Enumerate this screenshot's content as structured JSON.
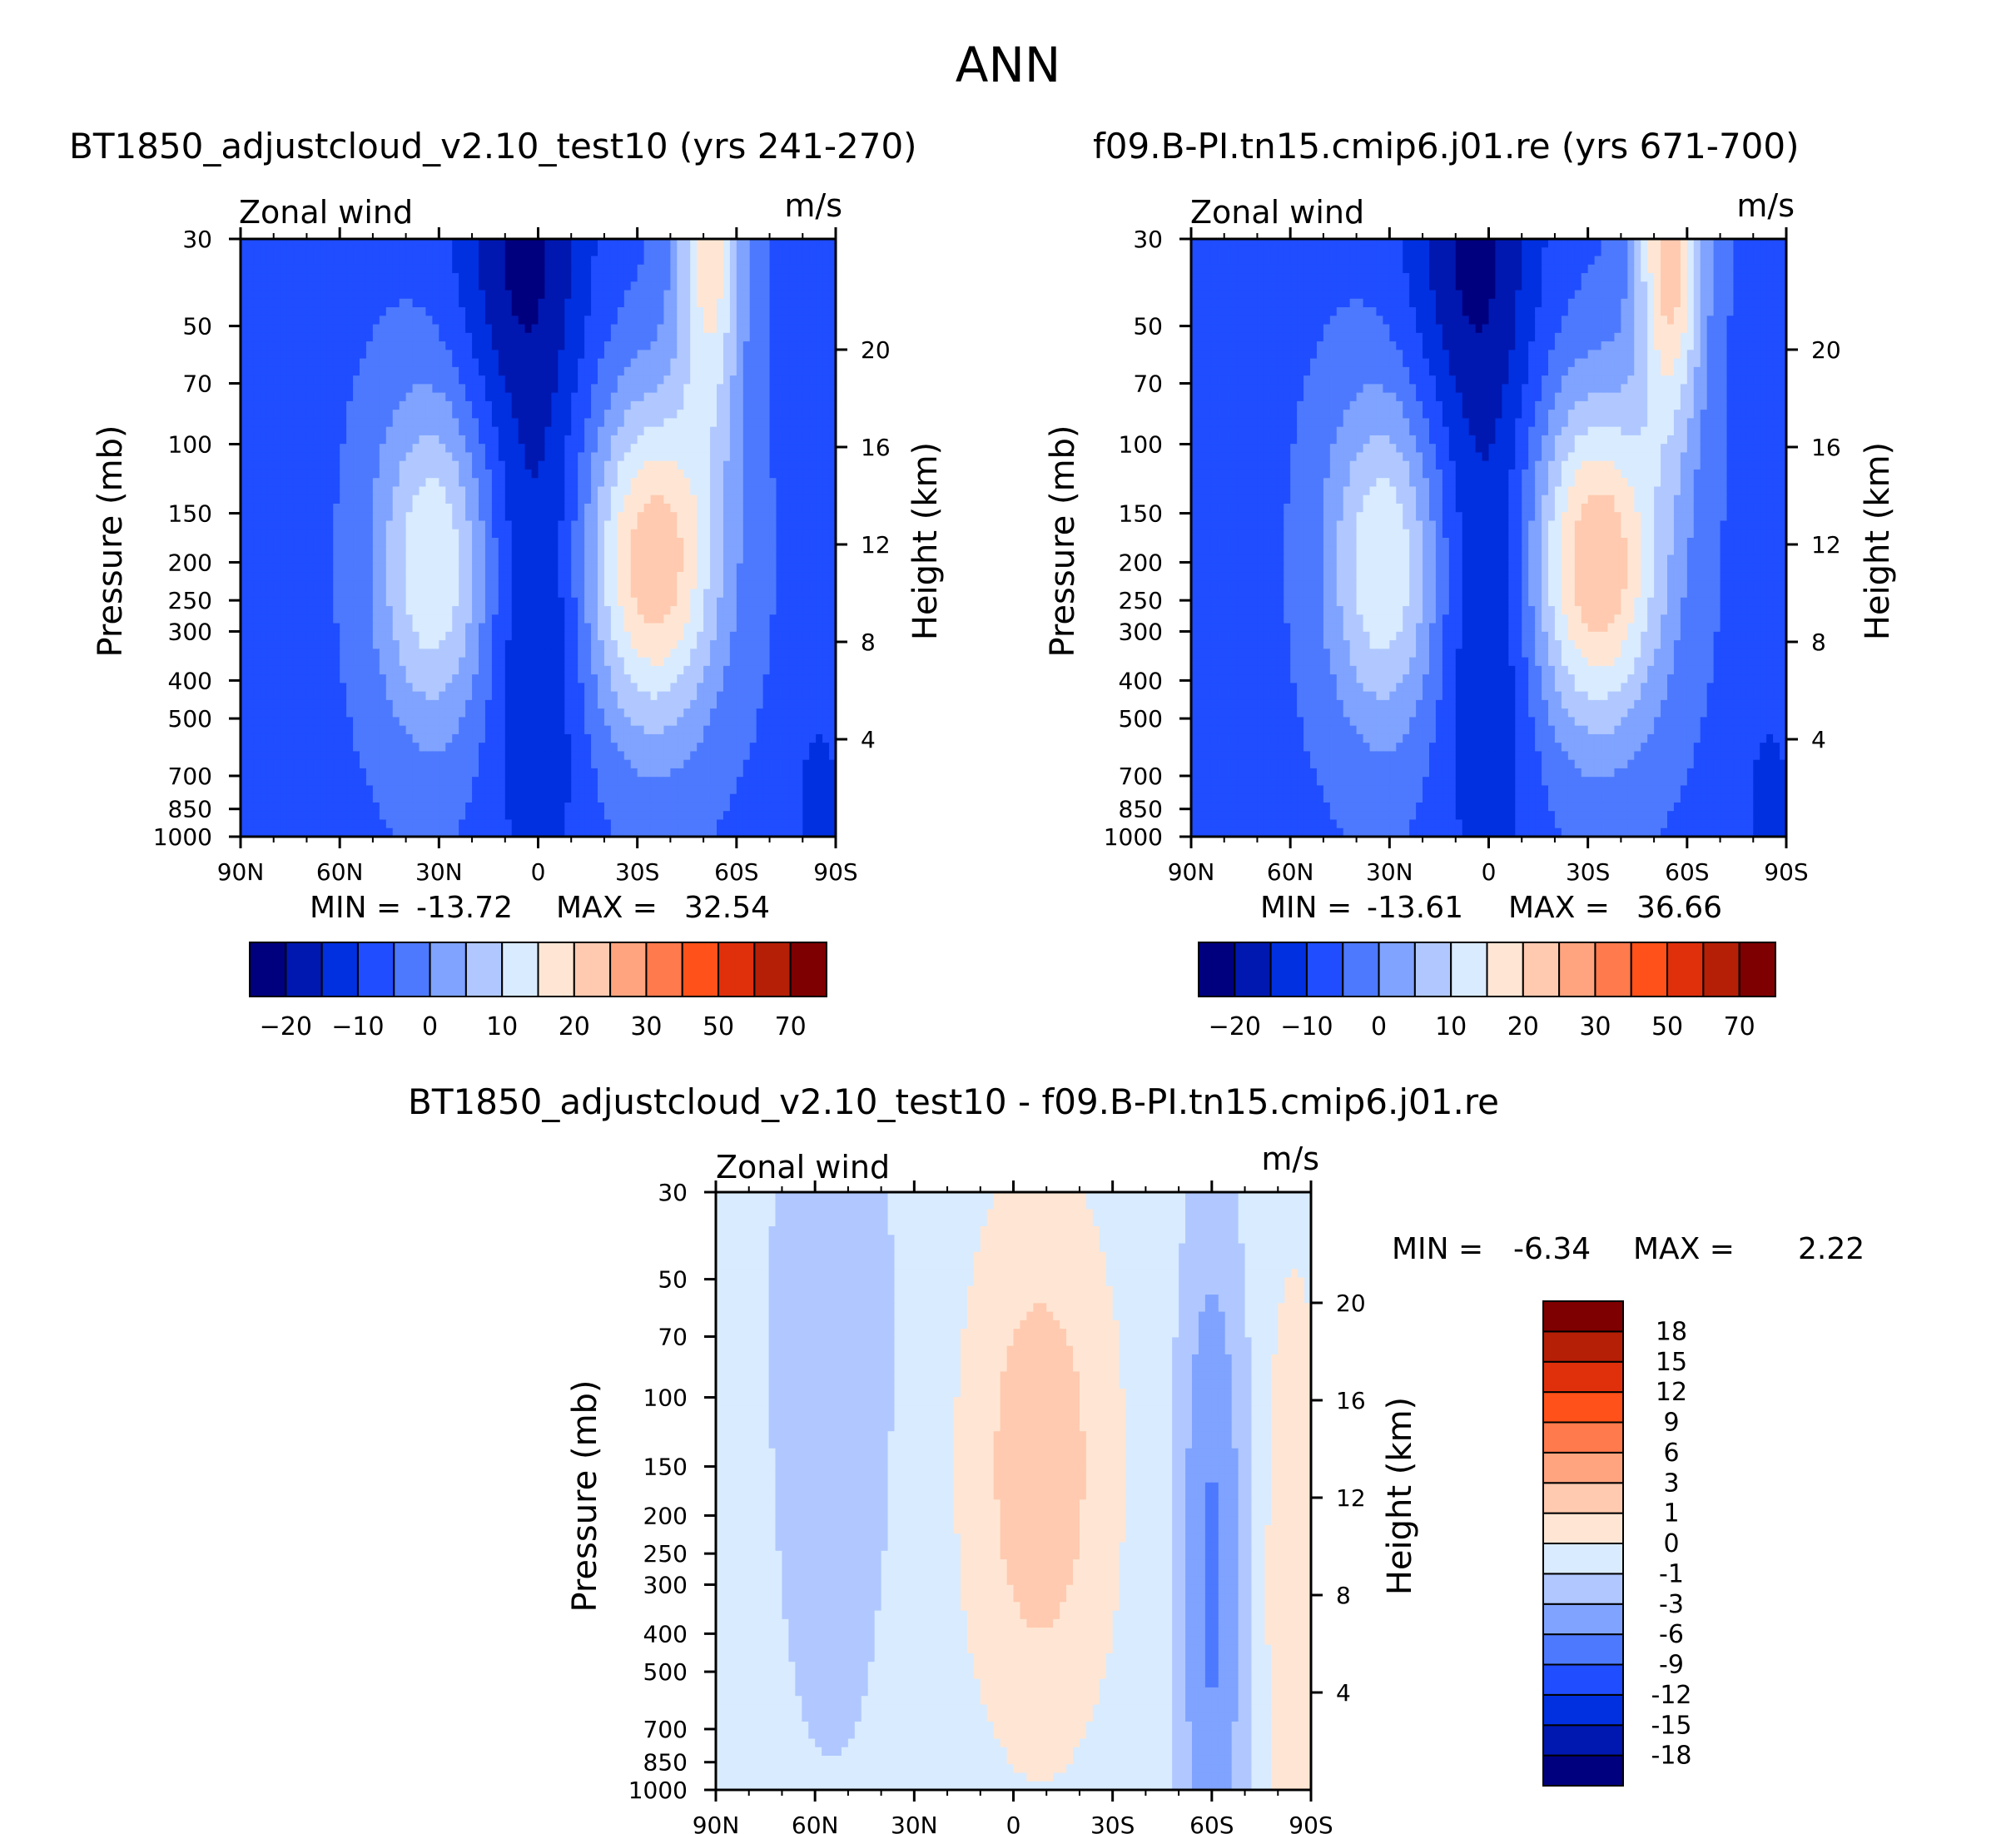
{
  "figure_title": "ANN",
  "colors": {
    "panel_scale": [
      "#00007f",
      "#0018b0",
      "#0030e0",
      "#1f4dff",
      "#4d79ff",
      "#7fa3ff",
      "#b0c8ff",
      "#d9ebff",
      "#ffe6d4",
      "#ffcab0",
      "#ffa47f",
      "#ff7a4d",
      "#ff5119",
      "#e0300b",
      "#b51f06",
      "#7f0000"
    ],
    "diff_scale": [
      "#00007f",
      "#0018b0",
      "#0030e0",
      "#1f4dff",
      "#4d79ff",
      "#7fa3ff",
      "#b0c8ff",
      "#d9ebff",
      "#ffe6d4",
      "#ffcab0",
      "#ffa47f",
      "#ff7a4d",
      "#ff5119",
      "#e0300b",
      "#b51f06",
      "#7f0000"
    ]
  },
  "chart_data": [
    {
      "type": "heatmap",
      "title": "BT1850_adjustcloud_v2.10_test10 (yrs 241-270)",
      "variable": "Zonal wind",
      "units": "m/s",
      "xlabel": "",
      "ylabel": "Pressure (mb)",
      "y2label": "Height (km)",
      "x_ticks": [
        "90N",
        "60N",
        "30N",
        "0",
        "30S",
        "60S",
        "90S"
      ],
      "y_ticks": [
        "30",
        "50",
        "70",
        "100",
        "150",
        "200",
        "250",
        "300",
        "400",
        "500",
        "700",
        "850",
        "1000"
      ],
      "y2_ticks": [
        "20",
        "16",
        "12",
        "8",
        "4"
      ],
      "min_label": "MIN =",
      "min_value": "-13.72",
      "max_label": "MAX =",
      "max_value": "32.54",
      "colorbar_labels": [
        "-20",
        "-10",
        "0",
        "10",
        "20",
        "30",
        "50",
        "70"
      ],
      "features": [
        {
          "lat": -35,
          "p": 200,
          "value": 30,
          "sx": 14,
          "sp": 0.7
        },
        {
          "lat": 32,
          "p": 200,
          "value": 21,
          "sx": 12,
          "sp": 0.7
        },
        {
          "lat": 5,
          "p": 30,
          "value": -14,
          "sx": 14,
          "sp": 0.8
        },
        {
          "lat": -52,
          "p": 30,
          "value": 24,
          "sx": 7,
          "sp": 0.8
        },
        {
          "lat": 0,
          "p": 300,
          "value": -10,
          "sx": 10,
          "sp": 1.2
        },
        {
          "lat": -85,
          "p": 1000,
          "value": -8,
          "sx": 5,
          "sp": 0.5
        }
      ]
    },
    {
      "type": "heatmap",
      "title": "f09.B-PI.tn15.cmip6.j01.re (yrs 671-700)",
      "variable": "Zonal wind",
      "units": "m/s",
      "xlabel": "",
      "ylabel": "Pressure (mb)",
      "y2label": "Height (km)",
      "x_ticks": [
        "90N",
        "60N",
        "30N",
        "0",
        "30S",
        "60S",
        "90S"
      ],
      "y_ticks": [
        "30",
        "50",
        "70",
        "100",
        "150",
        "200",
        "250",
        "300",
        "400",
        "500",
        "700",
        "850",
        "1000"
      ],
      "y2_ticks": [
        "20",
        "16",
        "12",
        "8",
        "4"
      ],
      "min_label": "MIN =",
      "min_value": "-13.61",
      "max_label": "MAX =",
      "max_value": "36.66",
      "colorbar_labels": [
        "-20",
        "-10",
        "0",
        "10",
        "20",
        "30",
        "50",
        "70"
      ],
      "features": [
        {
          "lat": -33,
          "p": 200,
          "value": 31,
          "sx": 14,
          "sp": 0.7
        },
        {
          "lat": 32,
          "p": 200,
          "value": 21,
          "sx": 12,
          "sp": 0.7
        },
        {
          "lat": 5,
          "p": 30,
          "value": -14,
          "sx": 14,
          "sp": 0.8
        },
        {
          "lat": -55,
          "p": 30,
          "value": 30,
          "sx": 7,
          "sp": 0.8
        },
        {
          "lat": 0,
          "p": 300,
          "value": -10,
          "sx": 10,
          "sp": 1.2
        },
        {
          "lat": -85,
          "p": 1000,
          "value": -8,
          "sx": 5,
          "sp": 0.5
        }
      ]
    },
    {
      "type": "heatmap",
      "title": "BT1850_adjustcloud_v2.10_test10 - f09.B-PI.tn15.cmip6.j01.re",
      "variable": "Zonal wind",
      "units": "m/s",
      "xlabel": "",
      "ylabel": "Pressure (mb)",
      "y2label": "Height (km)",
      "x_ticks": [
        "90N",
        "60N",
        "30N",
        "0",
        "30S",
        "60S",
        "90S"
      ],
      "y_ticks": [
        "30",
        "50",
        "70",
        "100",
        "150",
        "200",
        "250",
        "300",
        "400",
        "500",
        "700",
        "850",
        "1000"
      ],
      "y2_ticks": [
        "20",
        "16",
        "12",
        "8",
        "4"
      ],
      "min_label": "MIN =",
      "min_value": "-6.34",
      "max_label": "MAX =",
      "max_value": "2.22",
      "colorbar_labels": [
        "18",
        "15",
        "12",
        "9",
        "6",
        "3",
        "1",
        "0",
        "-1",
        "-3",
        "-6",
        "-9",
        "-12",
        "-15",
        "-18"
      ],
      "features": [
        {
          "lat": -8,
          "p": 150,
          "value": 2.2,
          "sx": 14,
          "sp": 1.0
        },
        {
          "lat": -60,
          "p": 300,
          "value": -6.3,
          "sx": 6,
          "sp": 1.3
        },
        {
          "lat": 55,
          "p": 70,
          "value": -2,
          "sx": 12,
          "sp": 1.6
        },
        {
          "lat": -85,
          "p": 300,
          "value": 1.3,
          "sx": 6,
          "sp": 1.2
        }
      ]
    }
  ]
}
